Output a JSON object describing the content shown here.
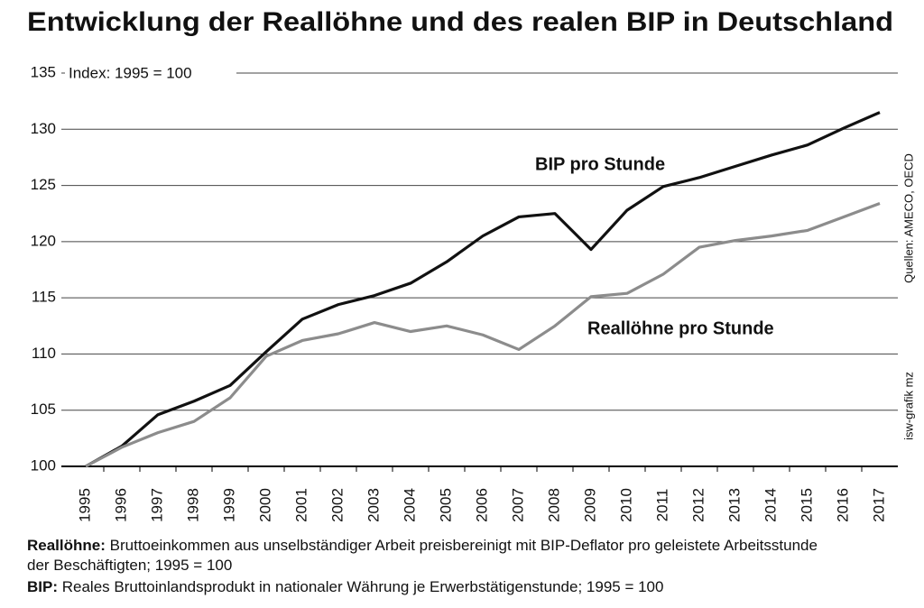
{
  "chart_data": {
    "type": "line",
    "title": "Entwicklung der Reallöhne und des realen BIP in Deutschland",
    "y_note": "Index: 1995 = 100",
    "source": "Quellen: AMECO, OECD",
    "credit": "isw-grafik mz",
    "x": [
      1995,
      1996,
      1997,
      1998,
      1999,
      2000,
      2001,
      2002,
      2003,
      2004,
      2005,
      2006,
      2007,
      2008,
      2009,
      2010,
      2011,
      2012,
      2013,
      2014,
      2015,
      2016,
      2017
    ],
    "xlim": [
      1995,
      2017
    ],
    "ylim": [
      100,
      135
    ],
    "yticks": [
      100,
      105,
      110,
      115,
      120,
      125,
      130,
      135
    ],
    "grid": true,
    "series": [
      {
        "name": "BIP pro Stunde",
        "color": "#111111",
        "values": [
          100,
          101.8,
          104.6,
          105.8,
          107.2,
          110.2,
          113.1,
          114.4,
          115.2,
          116.3,
          118.2,
          120.5,
          122.2,
          122.5,
          119.3,
          122.8,
          124.9,
          125.7,
          126.7,
          127.7,
          128.6,
          130.1,
          131.5
        ]
      },
      {
        "name": "Reallöhne pro Stunde",
        "color": "#8c8c8c",
        "values": [
          100,
          101.7,
          103.0,
          104.0,
          106.1,
          109.8,
          111.2,
          111.8,
          112.8,
          112.0,
          112.5,
          111.7,
          110.4,
          112.5,
          115.1,
          115.4,
          117.1,
          119.5,
          120.1,
          120.5,
          121.0,
          122.2,
          123.4
        ]
      }
    ]
  },
  "notes": [
    {
      "term": "Reallöhne:",
      "text": "Bruttoeinkommen aus unselbständiger Arbeit preisbereinigt mit BIP-Deflator pro geleistete Arbeitsstunde der Beschäftigten; 1995 = 100"
    },
    {
      "term": "BIP:",
      "text": "Reales Bruttoinlandsprodukt in nationaler Währung je Erwerbstätigenstunde; 1995 = 100"
    }
  ]
}
